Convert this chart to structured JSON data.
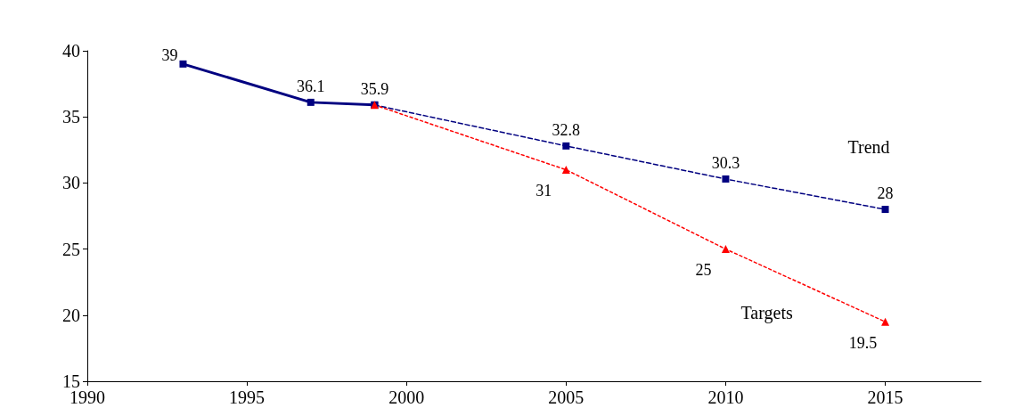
{
  "chart_data": {
    "type": "line",
    "xlim": [
      1990,
      2018
    ],
    "xticks": [
      1990,
      1995,
      2000,
      2005,
      2010,
      2015
    ],
    "ylim": [
      15,
      40
    ],
    "yticks": [
      15,
      20,
      25,
      30,
      35,
      40
    ],
    "grid": false,
    "legend": false,
    "series": [
      {
        "color": "#000080",
        "x": [
          1993,
          1997,
          1999
        ],
        "values": [
          39,
          36.1,
          35.9
        ],
        "value_labels": [
          "39",
          "36.1",
          "35.9"
        ],
        "marker": "square",
        "line_style": "solid"
      },
      {
        "name": "Trend",
        "color": "#000080",
        "x": [
          1999,
          2005,
          2010,
          2015
        ],
        "values": [
          35.9,
          32.8,
          30.3,
          28
        ],
        "value_labels": [
          null,
          "32.8",
          "30.3",
          "28"
        ],
        "marker": "square",
        "line_style": "dashed"
      },
      {
        "name": "Targets",
        "color": "#ff0000",
        "x": [
          1999,
          2005,
          2010,
          2015
        ],
        "values": [
          35.9,
          31,
          25,
          19.5
        ],
        "value_labels": [
          null,
          "31",
          "25",
          "19.5"
        ],
        "marker": "triangle",
        "line_style": "dotted"
      }
    ]
  }
}
